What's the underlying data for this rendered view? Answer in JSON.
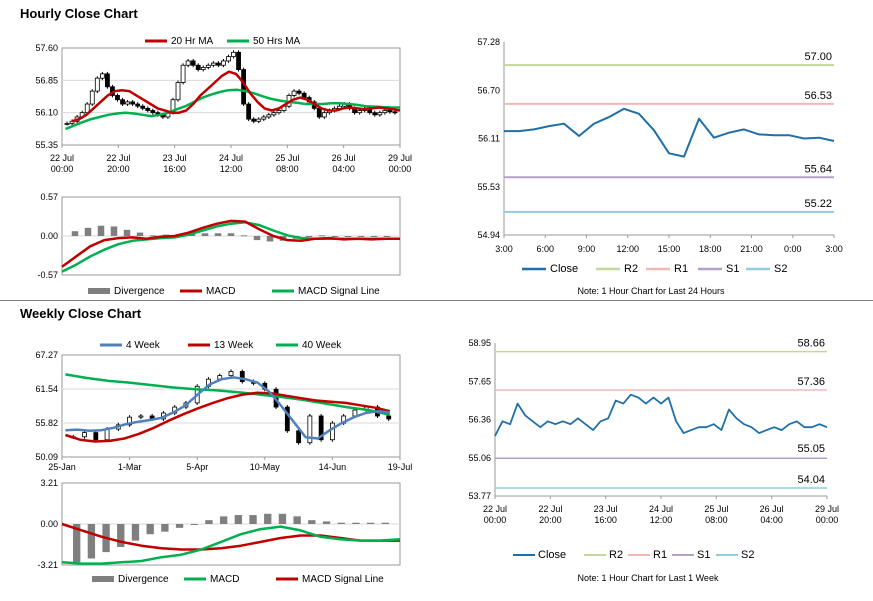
{
  "sections": {
    "hourly_title": "Hourly Close Chart",
    "weekly_title": "Weekly Close Chart"
  },
  "colors": {
    "ma20": "#c00000",
    "ma50": "#00b050",
    "close": "#1f6fa8",
    "r2": "#c3d69b",
    "r1": "#f2b8b8",
    "s1": "#b3a2c7",
    "s2": "#93cddd",
    "w4": "#4f81bd",
    "w13": "#c00000",
    "w40": "#00b050",
    "divergence": "#7f7f7f",
    "candle": "#000000"
  },
  "chart_data": [
    {
      "id": "hourly_price",
      "type": "candlestick",
      "title": "Hourly Close Chart",
      "legend": [
        "20 Hr MA",
        "50 Hrs MA"
      ],
      "y_ticks": [
        "57.60",
        "56.85",
        "56.10",
        "55.35"
      ],
      "ylim": [
        55.35,
        57.6
      ],
      "x_ticks": [
        [
          "22 Jul",
          "00:00"
        ],
        [
          "22 Jul",
          "20:00"
        ],
        [
          "23 Jul",
          "16:00"
        ],
        [
          "24 Jul",
          "12:00"
        ],
        [
          "25 Jul",
          "08:00"
        ],
        [
          "26 Jul",
          "04:00"
        ],
        [
          "29 Jul",
          "00:00"
        ]
      ],
      "close": [
        55.85,
        55.9,
        56.0,
        56.1,
        56.3,
        56.6,
        56.9,
        57.0,
        56.7,
        56.5,
        56.4,
        56.3,
        56.35,
        56.3,
        56.25,
        56.2,
        56.15,
        56.1,
        56.05,
        56.0,
        56.1,
        56.4,
        56.8,
        57.2,
        57.3,
        57.2,
        57.1,
        57.15,
        57.2,
        57.25,
        57.2,
        57.3,
        57.4,
        57.5,
        57.1,
        56.3,
        55.95,
        55.9,
        55.95,
        56.0,
        56.05,
        56.1,
        56.15,
        56.25,
        56.5,
        56.6,
        56.55,
        56.45,
        56.35,
        56.2,
        56.0,
        56.1,
        56.15,
        56.2,
        56.25,
        56.3,
        56.2,
        56.1,
        56.15,
        56.2,
        56.1,
        56.05,
        56.1,
        56.15,
        56.12,
        56.1
      ],
      "ma20": [
        55.9,
        55.95,
        56.05,
        56.2,
        56.35,
        56.5,
        56.6,
        56.62,
        56.6,
        56.5,
        56.4,
        56.3,
        56.2,
        56.15,
        56.1,
        56.1,
        56.15,
        56.3,
        56.5,
        56.65,
        56.8,
        56.95,
        57.05,
        57.0,
        56.8,
        56.55,
        56.35,
        56.2,
        56.15,
        56.2,
        56.3,
        56.4,
        56.45,
        56.4,
        56.3,
        56.2,
        56.15,
        56.15,
        56.2,
        56.22,
        56.2,
        56.18,
        56.2,
        56.22,
        56.2,
        56.18,
        56.15
      ],
      "ma50": [
        55.72,
        55.8,
        55.88,
        55.95,
        56.0,
        56.05,
        56.08,
        56.1,
        56.08,
        56.05,
        56.02,
        56.05,
        56.1,
        56.18,
        56.25,
        56.35,
        56.45,
        56.52,
        56.58,
        56.62,
        56.63,
        56.6,
        56.55,
        56.48,
        56.42,
        56.38,
        56.35,
        56.33,
        56.3,
        56.3,
        56.3,
        56.32,
        56.32,
        56.3,
        56.28,
        56.25,
        56.24,
        56.23,
        56.22,
        56.22
      ]
    },
    {
      "id": "hourly_macd",
      "type": "macd",
      "legend": [
        "Divergence",
        "MACD",
        "MACD Signal Line"
      ],
      "y_ticks": [
        "0.57",
        "0.00",
        "-0.57"
      ],
      "ylim": [
        -0.57,
        0.57
      ],
      "macd": [
        -0.45,
        -0.3,
        -0.15,
        -0.06,
        -0.03,
        -0.02,
        -0.04,
        -0.01,
        0.0,
        0.05,
        0.12,
        0.18,
        0.22,
        0.21,
        0.1,
        0.0,
        -0.06,
        -0.07,
        -0.04,
        -0.03,
        -0.05,
        -0.04,
        -0.05,
        -0.04,
        -0.04
      ],
      "signal": [
        -0.52,
        -0.42,
        -0.3,
        -0.2,
        -0.12,
        -0.07,
        -0.05,
        -0.03,
        -0.02,
        0.02,
        0.08,
        0.14,
        0.18,
        0.2,
        0.16,
        0.08,
        0.01,
        -0.03,
        -0.04,
        -0.04,
        -0.04,
        -0.04,
        -0.04,
        -0.04,
        -0.04
      ],
      "divergence": [
        0.07,
        0.12,
        0.15,
        0.14,
        0.09,
        0.05,
        0.01,
        0.02,
        0.02,
        0.03,
        0.04,
        0.04,
        0.04,
        0.01,
        -0.06,
        -0.08,
        -0.07,
        -0.04,
        0.0,
        0.01,
        -0.01,
        0.0,
        -0.01,
        0.0,
        0.0
      ]
    },
    {
      "id": "hourly_pivot",
      "type": "line",
      "y_ticks": [
        "57.28",
        "56.70",
        "56.11",
        "55.53",
        "54.94"
      ],
      "ylim": [
        54.94,
        57.28
      ],
      "x_ticks": [
        "3:00",
        "6:00",
        "9:00",
        "12:00",
        "15:00",
        "18:00",
        "21:00",
        "0:00",
        "3:00"
      ],
      "legend": [
        "Close",
        "R2",
        "R1",
        "S1",
        "S2"
      ],
      "levels": {
        "R2": "57.00",
        "R1": "56.53",
        "S1": "55.64",
        "S2": "55.22"
      },
      "close": [
        56.2,
        56.2,
        56.22,
        56.26,
        56.29,
        56.14,
        56.29,
        56.37,
        56.47,
        56.41,
        56.21,
        55.93,
        55.89,
        56.35,
        56.12,
        56.18,
        56.22,
        56.16,
        56.15,
        56.15,
        56.11,
        56.12,
        56.08
      ],
      "note": "Note: 1 Hour Chart for Last 24 Hours"
    },
    {
      "id": "weekly_price",
      "type": "candlestick",
      "title": "Weekly Close Chart",
      "legend": [
        "4 Week",
        "13 Week",
        "40 Week"
      ],
      "y_ticks": [
        "67.27",
        "61.54",
        "55.82",
        "50.09"
      ],
      "ylim": [
        50.09,
        67.27
      ],
      "x_ticks": [
        "25-Jan",
        "1-Mar",
        "5-Apr",
        "10-May",
        "14-Jun",
        "19-Jul"
      ],
      "close": [
        53.5,
        54.2,
        53.0,
        54.8,
        55.5,
        56.8,
        57.0,
        56.5,
        57.5,
        58.5,
        59.2,
        62.0,
        63.2,
        63.8,
        64.5,
        62.8,
        62.5,
        61.5,
        58.5,
        54.5,
        52.5,
        57.0,
        53.0,
        55.8,
        57.0,
        58.0,
        58.5,
        57.0,
        56.5
      ],
      "w4": [
        54.6,
        54.7,
        54.5,
        54.6,
        55.0,
        55.6,
        56.0,
        56.3,
        56.7,
        57.6,
        58.8,
        60.6,
        62.3,
        63.2,
        63.5,
        63.2,
        62.6,
        61.0,
        58.6,
        56.0,
        53.4,
        53.2,
        54.6,
        55.8,
        56.8,
        57.5,
        57.8,
        57.6
      ],
      "w13": [
        53.8,
        53.0,
        52.7,
        52.8,
        53.2,
        54.0,
        55.0,
        56.2,
        57.3,
        58.3,
        59.2,
        60.0,
        60.6,
        60.9,
        60.8,
        60.4,
        60.0,
        59.6,
        59.4,
        59.2,
        58.8,
        58.4,
        57.8
      ],
      "w40": [
        64.0,
        63.4,
        62.9,
        62.6,
        62.2,
        61.8,
        61.5,
        61.3,
        61.0,
        60.6,
        60.2,
        59.7,
        59.1,
        58.5,
        58.0,
        57.2
      ],
      "note": ""
    },
    {
      "id": "weekly_macd",
      "type": "macd",
      "legend": [
        "Divergence",
        "MACD",
        "MACD Signal Line"
      ],
      "y_ticks": [
        "3.21",
        "0.00",
        "-3.21"
      ],
      "ylim": [
        -3.21,
        3.21
      ],
      "macd": [
        -3.0,
        -3.1,
        -3.1,
        -3.0,
        -2.9,
        -2.6,
        -2.4,
        -2.0,
        -1.4,
        -0.8,
        -0.4,
        -0.2,
        -0.5,
        -1.0,
        -1.2,
        -1.3,
        -1.3,
        -1.2
      ],
      "signal": [
        0.0,
        -0.5,
        -1.0,
        -1.4,
        -1.7,
        -1.9,
        -2.0,
        -2.0,
        -1.9,
        -1.7,
        -1.4,
        -1.1,
        -0.9,
        -0.9,
        -1.1,
        -1.3,
        -1.3,
        -1.3
      ],
      "divergence": [
        -3.0,
        -2.7,
        -2.2,
        -1.8,
        -1.3,
        -0.8,
        -0.6,
        -0.3,
        0.0,
        0.3,
        0.6,
        0.7,
        0.7,
        0.8,
        0.8,
        0.6,
        0.3,
        0.2,
        0.1,
        0.1,
        0.1,
        0.1
      ]
    },
    {
      "id": "weekly_pivot",
      "type": "line",
      "y_ticks": [
        "58.95",
        "57.65",
        "56.36",
        "55.06",
        "53.77"
      ],
      "ylim": [
        53.77,
        58.95
      ],
      "x_ticks": [
        [
          "22 Jul",
          "00:00"
        ],
        [
          "22 Jul",
          "20:00"
        ],
        [
          "23 Jul",
          "16:00"
        ],
        [
          "24 Jul",
          "12:00"
        ],
        [
          "25 Jul",
          "08:00"
        ],
        [
          "26 Jul",
          "04:00"
        ],
        [
          "29 Jul",
          "00:00"
        ]
      ],
      "legend": [
        "Close",
        "R2",
        "R1",
        "S1",
        "S2"
      ],
      "levels": {
        "R2": "58.66",
        "R1": "57.36",
        "S1": "55.05",
        "S2": "54.04"
      },
      "close": [
        55.8,
        56.3,
        56.2,
        56.9,
        56.5,
        56.3,
        56.1,
        56.3,
        56.2,
        56.3,
        56.2,
        56.4,
        56.2,
        56.0,
        56.3,
        56.4,
        57.0,
        56.9,
        57.2,
        57.1,
        56.9,
        57.1,
        56.9,
        57.1,
        56.3,
        55.9,
        56.0,
        56.1,
        56.1,
        56.2,
        56.0,
        56.7,
        56.4,
        56.2,
        56.1,
        55.9,
        56.0,
        56.1,
        56.0,
        56.2,
        56.3,
        56.1,
        56.1,
        56.2,
        56.1
      ],
      "note": "Note: 1 Hour Chart for Last 1 Week"
    }
  ]
}
